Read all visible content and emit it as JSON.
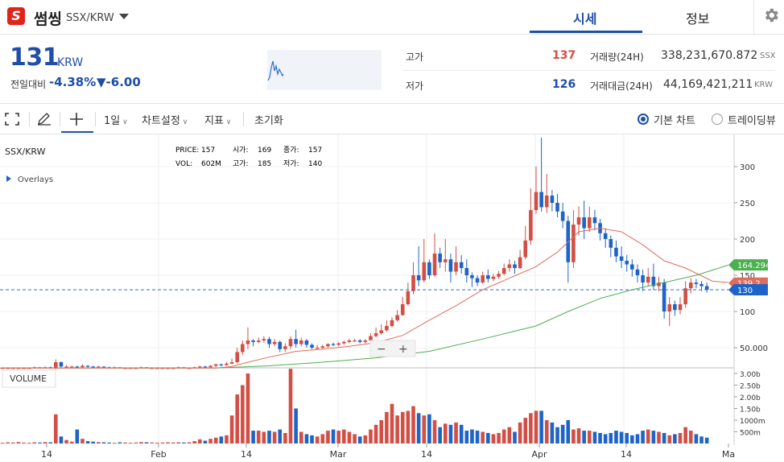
{
  "header": {
    "logo_letter": "S",
    "coin_name": "썸씽",
    "pair": "SSX/KRW",
    "tabs": [
      "시세",
      "정보"
    ],
    "active_tab": "시세"
  },
  "summary": {
    "price": "131",
    "price_unit": "KRW",
    "change_label": "전일대비",
    "change_pct": "-4.38%",
    "change_abs": "▼-6.00",
    "high_label": "고가",
    "high_value": "137",
    "low_label": "저가",
    "low_value": "126",
    "volume_label": "거래량(24H)",
    "volume_value": "338,231,670.872",
    "volume_unit": "SSX",
    "amount_label": "거래대금(24H)",
    "amount_value": "44,169,421,211",
    "amount_unit": "KRW"
  },
  "toolbar": {
    "interval": "1일",
    "chart_settings": "차트설정",
    "indicators": "지표",
    "reset": "초기화",
    "basic_chart": "기본 차트",
    "trading_view": "트레이딩뷰"
  },
  "colors": {
    "up": "#d24f45",
    "down": "#1e64c8",
    "ma_short": "#e06c5c",
    "ma_long": "#4caf50",
    "accent": "#1e4ea8"
  },
  "chart_data": {
    "type": "candlestick",
    "symbol": "SSX/KRW",
    "overlays_label": "Overlays",
    "legend": {
      "price_label": "PRICE:",
      "price": "157",
      "open_label": "시가:",
      "open": "169",
      "close_label": "종가:",
      "close": "157",
      "vol_label": "VOL:",
      "vol": "602M",
      "high_label": "고가:",
      "high": "185",
      "low_label": "저가:",
      "low": "140"
    },
    "y_ticks": [
      "300",
      "250",
      "200",
      "150",
      "100",
      "50.000"
    ],
    "volume_label": "VOLUME",
    "volume_ticks": [
      "3.00b",
      "2.50b",
      "2.00b",
      "1.50b",
      "1000m",
      "500m"
    ],
    "x_ticks": [
      "14",
      "Feb",
      "14",
      "Mar",
      "14",
      "Apr",
      "14",
      "Ma"
    ],
    "price_tags": {
      "ma_long": "164.294",
      "ma_short": "139.2",
      "last": "130"
    },
    "zoom_controls": [
      "−",
      "+"
    ],
    "candles": [
      [
        22,
        22,
        21,
        23,
        0.03
      ],
      [
        22,
        22,
        21,
        23,
        0.05
      ],
      [
        22,
        22,
        21,
        23,
        0.04
      ],
      [
        22,
        22,
        21,
        23,
        0.06
      ],
      [
        22,
        22,
        21,
        23,
        0.04
      ],
      [
        22,
        22,
        21,
        23,
        0.03
      ],
      [
        22,
        23,
        22,
        24,
        0.05
      ],
      [
        23,
        22,
        21,
        23,
        0.04
      ],
      [
        22,
        23,
        22,
        24,
        0.06
      ],
      [
        23,
        22,
        21,
        24,
        0.05
      ],
      [
        22,
        30,
        20,
        34,
        1.25
      ],
      [
        30,
        24,
        22,
        31,
        0.3
      ],
      [
        24,
        24,
        22,
        26,
        0.15
      ],
      [
        24,
        24,
        22,
        25,
        0.08
      ],
      [
        24,
        23,
        22,
        25,
        0.6
      ],
      [
        23,
        25,
        22,
        27,
        0.2
      ],
      [
        25,
        24,
        22,
        26,
        0.1
      ],
      [
        24,
        23,
        22,
        25,
        0.08
      ],
      [
        23,
        24,
        22,
        25,
        0.06
      ],
      [
        24,
        23,
        22,
        24,
        0.05
      ],
      [
        23,
        22,
        21,
        24,
        0.04
      ],
      [
        22,
        23,
        21,
        24,
        0.03
      ],
      [
        23,
        22,
        21,
        23,
        0.05
      ],
      [
        22,
        22,
        21,
        23,
        0.04
      ],
      [
        22,
        22,
        21,
        23,
        0.03
      ],
      [
        22,
        22,
        21,
        23,
        0.04
      ],
      [
        22,
        23,
        21,
        24,
        0.06
      ],
      [
        23,
        22,
        21,
        23,
        0.05
      ],
      [
        22,
        22,
        21,
        23,
        0.04
      ],
      [
        22,
        22,
        21,
        23,
        0.03
      ],
      [
        22,
        22,
        21,
        23,
        0.04
      ],
      [
        22,
        22,
        21,
        23,
        0.05
      ],
      [
        22,
        22,
        21,
        23,
        0.04
      ],
      [
        22,
        23,
        21,
        24,
        0.05
      ],
      [
        23,
        22,
        21,
        23,
        0.04
      ],
      [
        22,
        22,
        21,
        23,
        0.05
      ],
      [
        22,
        23,
        21,
        24,
        0.1
      ],
      [
        23,
        24,
        22,
        25,
        0.18
      ],
      [
        24,
        23,
        22,
        25,
        0.12
      ],
      [
        23,
        25,
        22,
        26,
        0.2
      ],
      [
        25,
        27,
        23,
        28,
        0.25
      ],
      [
        27,
        26,
        24,
        28,
        0.3
      ],
      [
        26,
        28,
        25,
        30,
        0.35
      ],
      [
        28,
        30,
        27,
        35,
        1.2
      ],
      [
        30,
        44,
        28,
        50,
        2.1
      ],
      [
        44,
        55,
        40,
        60,
        2.5
      ],
      [
        55,
        60,
        48,
        78,
        3.0
      ],
      [
        60,
        58,
        52,
        62,
        0.55
      ],
      [
        58,
        60,
        56,
        64,
        0.55
      ],
      [
        60,
        62,
        57,
        66,
        0.5
      ],
      [
        62,
        55,
        50,
        65,
        0.55
      ],
      [
        55,
        58,
        52,
        62,
        0.5
      ],
      [
        58,
        48,
        44,
        60,
        0.6
      ],
      [
        48,
        52,
        44,
        56,
        0.45
      ],
      [
        52,
        62,
        48,
        66,
        3.2
      ],
      [
        62,
        55,
        50,
        75,
        1.5
      ],
      [
        55,
        60,
        52,
        64,
        0.5
      ],
      [
        60,
        54,
        50,
        62,
        0.4
      ],
      [
        54,
        50,
        48,
        56,
        0.35
      ],
      [
        50,
        50,
        48,
        54,
        0.3
      ],
      [
        50,
        52,
        48,
        54,
        0.4
      ],
      [
        52,
        55,
        50,
        56,
        0.55
      ],
      [
        55,
        54,
        52,
        57,
        0.6
      ],
      [
        54,
        56,
        52,
        58,
        0.55
      ],
      [
        56,
        58,
        54,
        60,
        0.6
      ],
      [
        58,
        60,
        56,
        62,
        0.5
      ],
      [
        60,
        60,
        58,
        62,
        0.4
      ],
      [
        60,
        58,
        56,
        62,
        0.3
      ],
      [
        58,
        60,
        56,
        62,
        0.35
      ],
      [
        60,
        66,
        58,
        70,
        0.6
      ],
      [
        66,
        70,
        64,
        78,
        0.8
      ],
      [
        70,
        74,
        68,
        82,
        1.0
      ],
      [
        74,
        80,
        72,
        88,
        1.35
      ],
      [
        80,
        88,
        78,
        92,
        1.7
      ],
      [
        88,
        95,
        86,
        102,
        1.2
      ],
      [
        95,
        110,
        94,
        120,
        1.35
      ],
      [
        110,
        128,
        108,
        140,
        1.4
      ],
      [
        128,
        150,
        124,
        168,
        1.6
      ],
      [
        150,
        143,
        135,
        190,
        1.3
      ],
      [
        143,
        168,
        140,
        200,
        1.2
      ],
      [
        168,
        150,
        145,
        172,
        1.25
      ],
      [
        150,
        180,
        148,
        208,
        1.0
      ],
      [
        180,
        168,
        160,
        188,
        0.7
      ],
      [
        168,
        172,
        155,
        200,
        0.85
      ],
      [
        172,
        155,
        140,
        180,
        0.8
      ],
      [
        155,
        168,
        150,
        190,
        0.9
      ],
      [
        168,
        160,
        152,
        178,
        0.8
      ],
      [
        160,
        150,
        140,
        172,
        0.55
      ],
      [
        150,
        146,
        134,
        154,
        0.6
      ],
      [
        146,
        140,
        135,
        150,
        0.55
      ],
      [
        140,
        150,
        138,
        155,
        0.5
      ],
      [
        150,
        145,
        140,
        158,
        0.45
      ],
      [
        145,
        148,
        142,
        152,
        0.4
      ],
      [
        148,
        152,
        145,
        156,
        0.45
      ],
      [
        152,
        160,
        150,
        166,
        0.6
      ],
      [
        160,
        165,
        155,
        172,
        0.7
      ],
      [
        165,
        160,
        152,
        170,
        0.5
      ],
      [
        160,
        175,
        158,
        185,
        0.9
      ],
      [
        175,
        198,
        172,
        218,
        1.1
      ],
      [
        198,
        240,
        192,
        270,
        1.3
      ],
      [
        240,
        265,
        235,
        300,
        1.4
      ],
      [
        265,
        244,
        238,
        340,
        1.4
      ],
      [
        244,
        260,
        236,
        290,
        1.0
      ],
      [
        260,
        250,
        238,
        268,
        0.9
      ],
      [
        250,
        238,
        230,
        262,
        0.7
      ],
      [
        238,
        225,
        215,
        250,
        0.8
      ],
      [
        225,
        168,
        140,
        232,
        1.0
      ],
      [
        168,
        220,
        160,
        240,
        0.6
      ],
      [
        220,
        230,
        205,
        245,
        0.65
      ],
      [
        230,
        215,
        200,
        253,
        0.55
      ],
      [
        215,
        230,
        210,
        245,
        0.55
      ],
      [
        230,
        222,
        212,
        240,
        0.5
      ],
      [
        222,
        208,
        198,
        228,
        0.45
      ],
      [
        208,
        200,
        188,
        215,
        0.4
      ],
      [
        200,
        188,
        175,
        205,
        0.45
      ],
      [
        188,
        176,
        168,
        198,
        0.55
      ],
      [
        176,
        170,
        160,
        190,
        0.5
      ],
      [
        170,
        165,
        155,
        178,
        0.45
      ],
      [
        165,
        158,
        148,
        172,
        0.35
      ],
      [
        158,
        150,
        140,
        165,
        0.4
      ],
      [
        150,
        140,
        128,
        158,
        0.55
      ],
      [
        140,
        148,
        135,
        160,
        0.6
      ],
      [
        148,
        135,
        130,
        166,
        0.55
      ],
      [
        135,
        140,
        128,
        148,
        0.5
      ],
      [
        140,
        100,
        90,
        145,
        0.45
      ],
      [
        100,
        110,
        80,
        120,
        0.35
      ],
      [
        110,
        102,
        94,
        115,
        0.4
      ],
      [
        102,
        110,
        96,
        120,
        0.45
      ],
      [
        110,
        132,
        105,
        142,
        0.7
      ],
      [
        132,
        140,
        125,
        146,
        0.55
      ],
      [
        140,
        138,
        132,
        145,
        0.4
      ],
      [
        138,
        135,
        128,
        142,
        0.3
      ],
      [
        135,
        130,
        126,
        140,
        0.25
      ]
    ],
    "ma_short": [
      [
        0,
        22
      ],
      [
        40,
        22
      ],
      [
        43,
        24
      ],
      [
        46,
        30
      ],
      [
        50,
        37
      ],
      [
        55,
        45
      ],
      [
        60,
        48
      ],
      [
        65,
        52
      ],
      [
        70,
        57
      ],
      [
        75,
        67
      ],
      [
        80,
        88
      ],
      [
        85,
        108
      ],
      [
        90,
        130
      ],
      [
        95,
        146
      ],
      [
        100,
        162
      ],
      [
        104,
        182
      ],
      [
        108,
        210
      ],
      [
        112,
        215
      ],
      [
        116,
        210
      ],
      [
        120,
        192
      ],
      [
        124,
        170
      ],
      [
        128,
        160
      ],
      [
        133,
        142
      ],
      [
        136,
        140
      ]
    ],
    "ma_long": [
      [
        0,
        22
      ],
      [
        40,
        22
      ],
      [
        50,
        25
      ],
      [
        60,
        30
      ],
      [
        70,
        36
      ],
      [
        80,
        45
      ],
      [
        90,
        62
      ],
      [
        100,
        80
      ],
      [
        106,
        100
      ],
      [
        112,
        118
      ],
      [
        118,
        130
      ],
      [
        124,
        140
      ],
      [
        130,
        150
      ],
      [
        136,
        164
      ]
    ]
  }
}
